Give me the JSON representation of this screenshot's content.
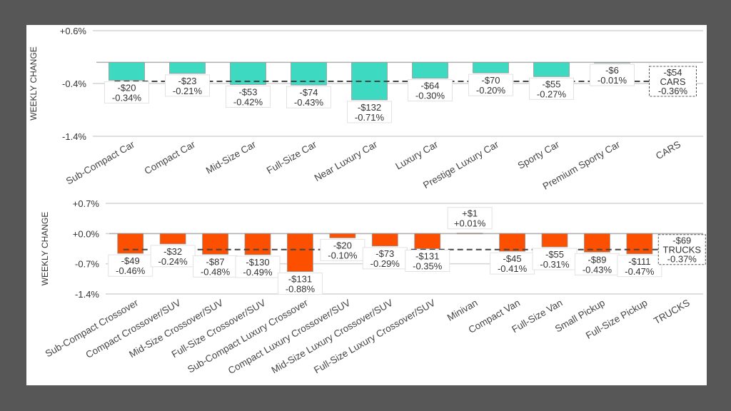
{
  "chart_data": [
    {
      "type": "bar",
      "ylabel": "WEEKLY CHANGE",
      "ylim": [
        -1.4,
        0.6
      ],
      "yticks": [
        "+0.6%",
        "-0.4%",
        "-1.4%"
      ],
      "ytick_values": [
        0.6,
        -0.4,
        -1.4
      ],
      "grid": true,
      "bar_color": "#3dd9c1",
      "categories": [
        "Sub-Compact Car",
        "Compact Car",
        "Mid-Size Car",
        "Full-Size Car",
        "Near Luxury Car",
        "Luxury Car",
        "Prestige Luxury Car",
        "Sporty Car",
        "Premium Sporty Car",
        "CARS"
      ],
      "values_pct": [
        -0.34,
        -0.21,
        -0.42,
        -0.43,
        -0.71,
        -0.3,
        -0.2,
        -0.27,
        -0.01,
        null
      ],
      "dollar_labels": [
        "-$20",
        "-$23",
        "-$53",
        "-$74",
        "-$132",
        "-$64",
        "-$70",
        "-$55",
        "-$6",
        null
      ],
      "pct_labels": [
        "-0.34%",
        "-0.21%",
        "-0.42%",
        "-0.43%",
        "-0.71%",
        "-0.30%",
        "-0.20%",
        "-0.27%",
        "-0.01%",
        null
      ],
      "total": {
        "label": "CARS",
        "dollar": "-$54",
        "pct_label": "-0.36%",
        "value_pct": -0.36
      }
    },
    {
      "type": "bar",
      "ylabel": "WEEKLY CHANGE",
      "ylim": [
        -1.4,
        0.7
      ],
      "yticks": [
        "+0.7%",
        "+0.0%",
        "-0.7%",
        "-1.4%"
      ],
      "ytick_values": [
        0.7,
        0.0,
        -0.7,
        -1.4
      ],
      "grid": true,
      "bar_color": "#fc5000",
      "categories": [
        "Sub-Compact Crossover",
        "Compact Crossover/SUV",
        "Mid-Size Crossover/SUV",
        "Full-Size Crossover/SUV",
        "Sub-Compact Luxury Crossover",
        "Compact Luxury Crossover/SUV",
        "Mid-Size Luxury Crossover/SUV",
        "Full-Size Luxury Crossover/SUV",
        "Minivan",
        "Compact Van",
        "Full-Size Van",
        "Small Pickup",
        "Full-Size Pickup",
        "TRUCKS"
      ],
      "values_pct": [
        -0.46,
        -0.24,
        -0.48,
        -0.49,
        -0.88,
        -0.1,
        -0.29,
        -0.35,
        0.01,
        -0.41,
        -0.31,
        -0.43,
        -0.47,
        null
      ],
      "dollar_labels": [
        "-$49",
        "-$32",
        "-$87",
        "-$130",
        "-$131",
        "-$20",
        "-$73",
        "-$131",
        "+$1",
        "-$45",
        "-$55",
        "-$89",
        "-$111",
        null
      ],
      "pct_labels": [
        "-0.46%",
        "-0.24%",
        "-0.48%",
        "-0.49%",
        "-0.88%",
        "-0.10%",
        "-0.29%",
        "-0.35%",
        "+0.01%",
        "-0.41%",
        "-0.31%",
        "-0.43%",
        "-0.47%",
        null
      ],
      "total": {
        "label": "TRUCKS",
        "dollar": "-$69",
        "pct_label": "-0.37%",
        "value_pct": -0.37
      }
    }
  ]
}
